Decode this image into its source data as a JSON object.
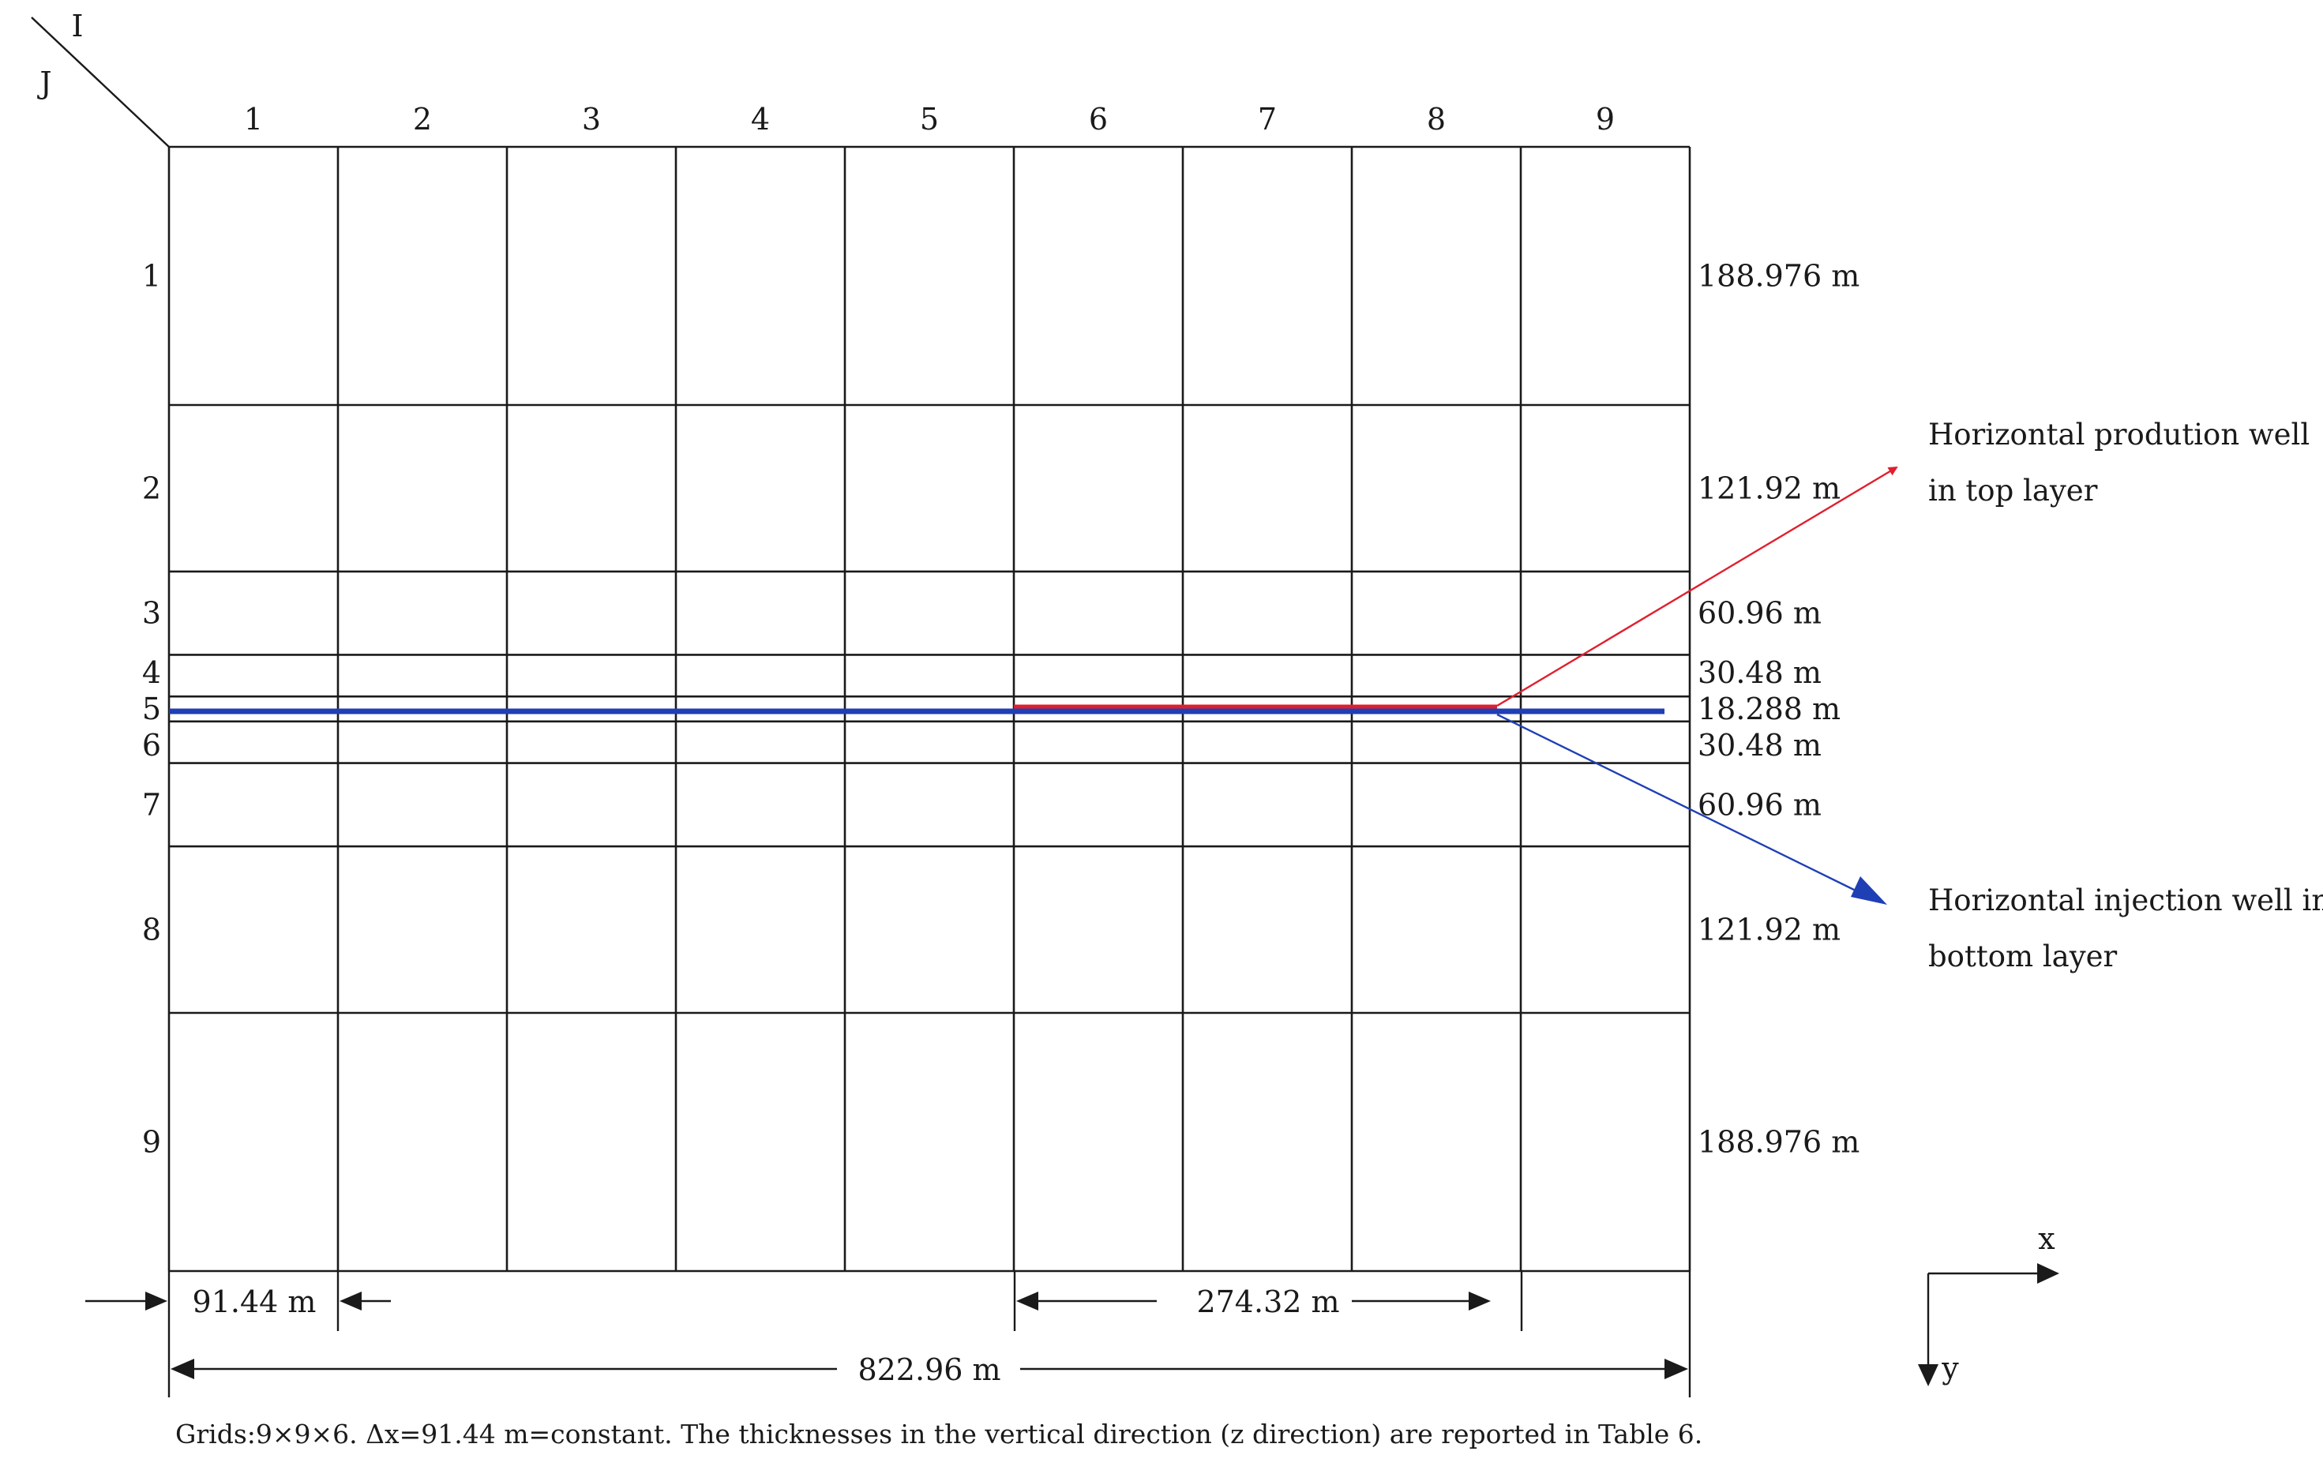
{
  "corner": {
    "i_label": "I",
    "j_label": "J"
  },
  "grid": {
    "column_labels": [
      "1",
      "2",
      "3",
      "4",
      "5",
      "6",
      "7",
      "8",
      "9"
    ],
    "row_labels": [
      "1",
      "2",
      "3",
      "4",
      "5",
      "6",
      "7",
      "8",
      "9"
    ],
    "row_thicknesses_m": [
      188.976,
      121.92,
      60.96,
      30.48,
      18.288,
      30.48,
      60.96,
      121.92,
      188.976
    ],
    "row_thickness_labels": [
      "188.976 m",
      "121.92 m",
      "60.96 m",
      "30.48 m",
      "18.288 m",
      "30.48 m",
      "60.96 m",
      "121.92 m",
      "188.976 m"
    ],
    "column_width_m": 91.44
  },
  "wells": {
    "production": {
      "line1": "Horizontal prodution well",
      "line2": "in top layer",
      "color": "#e01f2e",
      "from_column": 6,
      "to_column": 8
    },
    "injection": {
      "line1": "Horizontal injection well in",
      "line2": "bottom layer",
      "color": "#1f3fb5",
      "from_column": 1,
      "to_column": 9
    }
  },
  "dimensions": {
    "cell_width_label": "91.44 m",
    "segment_label": "274.32 m",
    "total_width_label": "822.96 m"
  },
  "axes": {
    "x_label": "x",
    "y_label": "y"
  },
  "caption": "Grids:9×9×6. Δx=91.44 m=constant. The thicknesses in the vertical direction (z direction) are reported in Table 6."
}
